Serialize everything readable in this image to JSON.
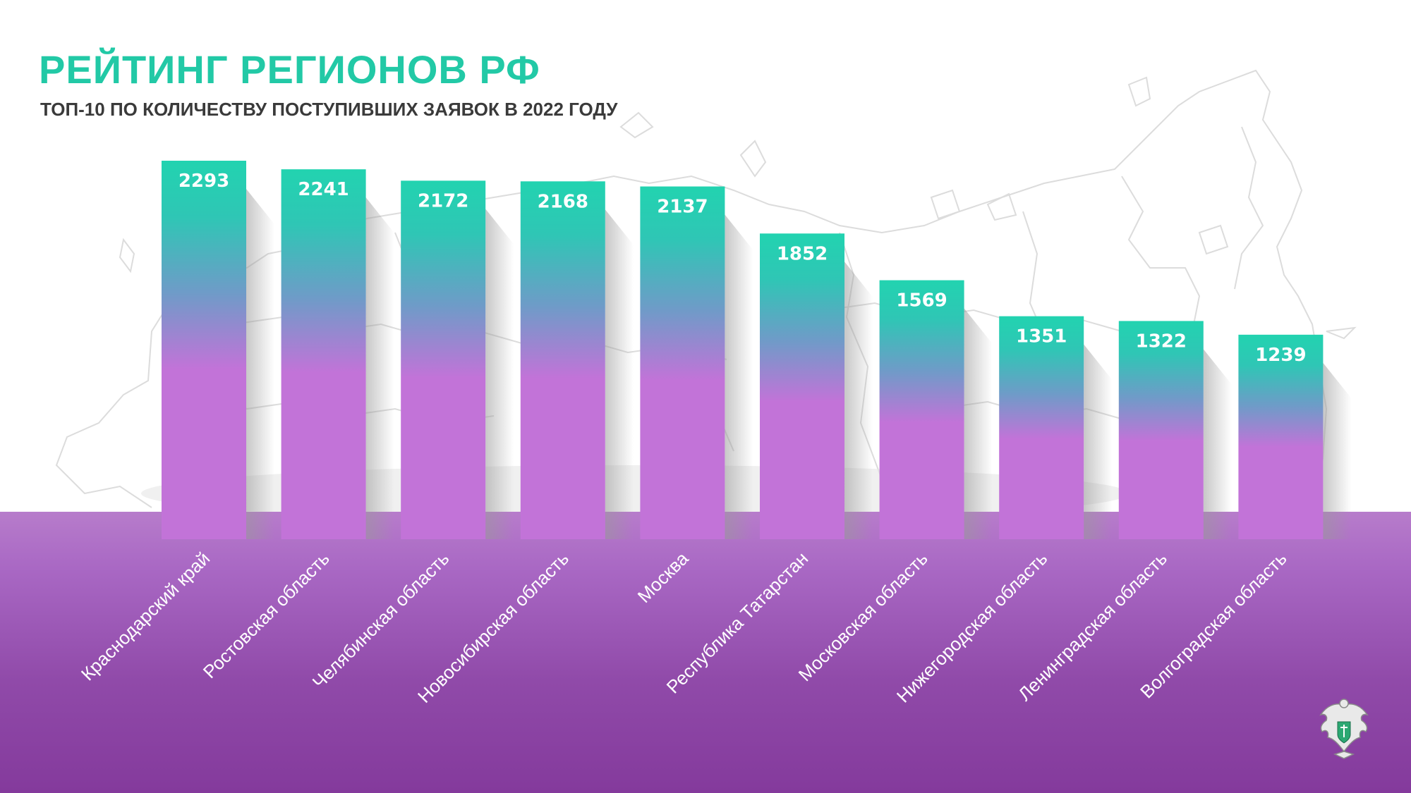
{
  "header": {
    "title": "РЕЙТИНГ РЕГИОНОВ РФ",
    "subtitle": "ТОП-10 ПО КОЛИЧЕСТВУ ПОСТУПИВШИХ ЗАЯВОК В 2022 ГОДУ"
  },
  "colors": {
    "title": "#22c9a6",
    "bar_top": "#22d3b0",
    "bar_bottom": "#c273d8",
    "floor": "#8a40a2"
  },
  "icons": {
    "emblem": "coat-of-arms-icon"
  },
  "chart_data": {
    "type": "bar",
    "categories": [
      "Краснодарский край",
      "Ростовская область",
      "Челябинская область",
      "Новосибирская область",
      "Москва",
      "Республика Татарстан",
      "Московская область",
      "Нижегородская область",
      "Ленинградская область",
      "Волгоградская область"
    ],
    "values": [
      2293,
      2241,
      2172,
      2168,
      2137,
      1852,
      1569,
      1351,
      1322,
      1239
    ],
    "title": "РЕЙТИНГ РЕГИОНОВ РФ",
    "xlabel": "",
    "ylabel": "",
    "ylim": [
      0,
      2293
    ],
    "grid": false,
    "legend": "none",
    "data_labels": "inside-top"
  }
}
